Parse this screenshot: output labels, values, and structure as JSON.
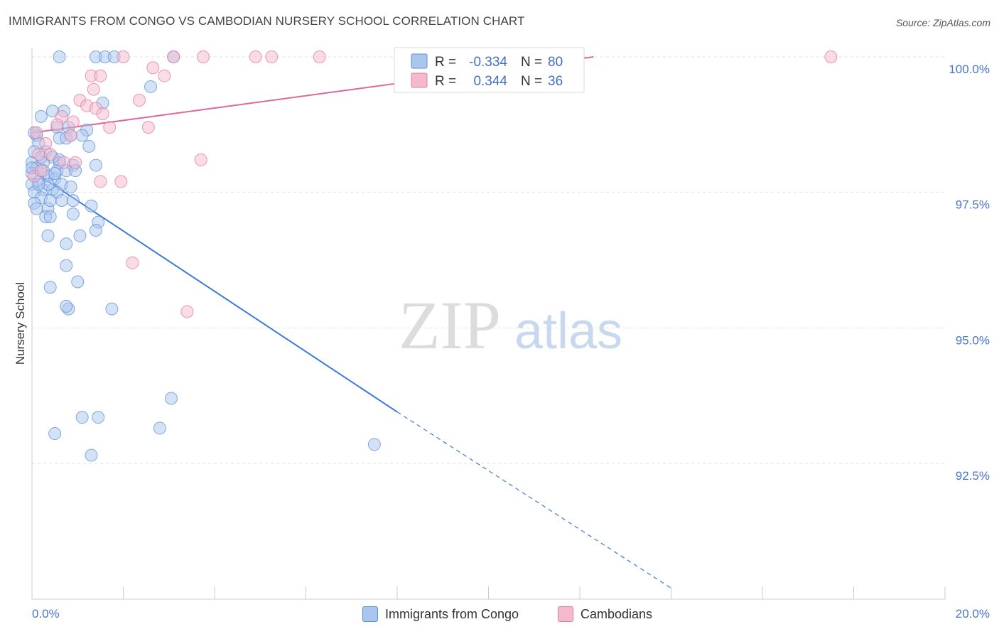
{
  "title": "IMMIGRANTS FROM CONGO VS CAMBODIAN NURSERY SCHOOL CORRELATION CHART",
  "source": "Source: ZipAtlas.com",
  "watermark": {
    "zip": "ZIP",
    "atlas": "atlas"
  },
  "chart_data": {
    "type": "scatter",
    "title": "IMMIGRANTS FROM CONGO VS CAMBODIAN NURSERY SCHOOL CORRELATION CHART",
    "xlabel": "",
    "ylabel": "Nursery School",
    "xlim": [
      0,
      20
    ],
    "ylim": [
      90.2,
      100.4
    ],
    "x_tick_labels": {
      "min": "0.0%",
      "max": "20.0%"
    },
    "y_ticks": [
      {
        "value": 100.0,
        "label": "100.0%"
      },
      {
        "value": 97.5,
        "label": "97.5%"
      },
      {
        "value": 95.0,
        "label": "95.0%"
      },
      {
        "value": 92.5,
        "label": "92.5%"
      }
    ],
    "legend": {
      "r_label": "R =",
      "n_label": "N =",
      "entries": [
        {
          "r": "-0.334",
          "n": "80"
        },
        {
          "r": "0.344",
          "n": "36"
        }
      ]
    },
    "series": [
      {
        "name": "Immigrants from Congo",
        "color": "#5b8fd8",
        "fill": "#aac6ee",
        "trend": {
          "x1": 0.0,
          "y1": 97.9,
          "x2": 8.0,
          "y2": 93.45,
          "dash_to_x": 14.0,
          "dash_to_y": 90.2
        },
        "points": [
          [
            0.6,
            100.0
          ],
          [
            1.4,
            100.0
          ],
          [
            1.6,
            100.0
          ],
          [
            1.8,
            100.0
          ],
          [
            3.1,
            100.0
          ],
          [
            2.6,
            99.45
          ],
          [
            1.55,
            99.15
          ],
          [
            0.2,
            98.9
          ],
          [
            0.45,
            99.0
          ],
          [
            0.7,
            99.0
          ],
          [
            0.55,
            98.7
          ],
          [
            0.8,
            98.7
          ],
          [
            1.2,
            98.65
          ],
          [
            0.1,
            98.55
          ],
          [
            0.6,
            98.5
          ],
          [
            0.75,
            98.5
          ],
          [
            1.1,
            98.55
          ],
          [
            1.25,
            98.35
          ],
          [
            0.15,
            98.4
          ],
          [
            0.3,
            98.25
          ],
          [
            0.45,
            98.15
          ],
          [
            0.0,
            98.05
          ],
          [
            0.25,
            98.05
          ],
          [
            0.6,
            98.05
          ],
          [
            0.9,
            98.0
          ],
          [
            1.4,
            98.0
          ],
          [
            0.1,
            97.95
          ],
          [
            0.25,
            97.9
          ],
          [
            0.55,
            97.9
          ],
          [
            0.75,
            97.9
          ],
          [
            0.95,
            97.9
          ],
          [
            0.0,
            97.85
          ],
          [
            0.35,
            97.8
          ],
          [
            0.5,
            97.75
          ],
          [
            0.15,
            97.7
          ],
          [
            0.65,
            97.65
          ],
          [
            0.85,
            97.6
          ],
          [
            0.0,
            97.65
          ],
          [
            0.25,
            97.55
          ],
          [
            0.45,
            97.55
          ],
          [
            0.05,
            97.5
          ],
          [
            0.55,
            97.5
          ],
          [
            0.2,
            97.4
          ],
          [
            0.65,
            97.35
          ],
          [
            0.9,
            97.35
          ],
          [
            1.3,
            97.25
          ],
          [
            0.05,
            97.3
          ],
          [
            0.35,
            97.2
          ],
          [
            0.9,
            97.1
          ],
          [
            0.3,
            97.05
          ],
          [
            0.4,
            97.05
          ],
          [
            1.45,
            96.95
          ],
          [
            1.4,
            96.8
          ],
          [
            0.35,
            96.7
          ],
          [
            1.05,
            96.7
          ],
          [
            0.75,
            96.55
          ],
          [
            0.75,
            96.15
          ],
          [
            1.0,
            95.85
          ],
          [
            0.4,
            95.75
          ],
          [
            0.8,
            95.35
          ],
          [
            0.75,
            95.4
          ],
          [
            1.75,
            95.35
          ],
          [
            3.05,
            93.7
          ],
          [
            1.1,
            93.35
          ],
          [
            1.45,
            93.35
          ],
          [
            0.5,
            93.05
          ],
          [
            2.8,
            93.15
          ],
          [
            1.3,
            92.65
          ],
          [
            7.5,
            92.85
          ],
          [
            0.05,
            98.6
          ],
          [
            0.35,
            97.65
          ],
          [
            0.15,
            97.65
          ],
          [
            0.6,
            98.1
          ],
          [
            0.05,
            98.25
          ],
          [
            0.2,
            98.15
          ],
          [
            0.0,
            97.95
          ],
          [
            0.4,
            97.35
          ],
          [
            0.1,
            97.2
          ],
          [
            0.85,
            98.55
          ],
          [
            0.5,
            97.85
          ]
        ]
      },
      {
        "name": "Cambodians",
        "color": "#e07aa0",
        "fill": "#f4b9cd",
        "trend": {
          "x1": 0.0,
          "y1": 98.6,
          "x2": 12.3,
          "y2": 100.0
        },
        "points": [
          [
            2.0,
            100.0
          ],
          [
            3.1,
            100.0
          ],
          [
            3.75,
            100.0
          ],
          [
            4.9,
            100.0
          ],
          [
            5.25,
            100.0
          ],
          [
            6.3,
            100.0
          ],
          [
            17.5,
            100.0
          ],
          [
            2.65,
            99.8
          ],
          [
            1.3,
            99.65
          ],
          [
            1.5,
            99.65
          ],
          [
            2.9,
            99.65
          ],
          [
            1.35,
            99.4
          ],
          [
            1.05,
            99.2
          ],
          [
            2.35,
            99.2
          ],
          [
            1.2,
            99.1
          ],
          [
            1.4,
            99.05
          ],
          [
            1.55,
            98.95
          ],
          [
            0.65,
            98.9
          ],
          [
            0.55,
            98.75
          ],
          [
            2.55,
            98.7
          ],
          [
            1.7,
            98.7
          ],
          [
            0.85,
            98.55
          ],
          [
            0.3,
            98.4
          ],
          [
            0.15,
            98.2
          ],
          [
            0.4,
            98.2
          ],
          [
            3.7,
            98.1
          ],
          [
            0.95,
            98.05
          ],
          [
            1.5,
            97.7
          ],
          [
            1.95,
            97.7
          ],
          [
            0.05,
            97.8
          ],
          [
            2.2,
            96.2
          ],
          [
            3.4,
            95.3
          ],
          [
            0.1,
            98.6
          ],
          [
            0.2,
            97.9
          ],
          [
            0.7,
            98.05
          ],
          [
            0.9,
            98.8
          ]
        ]
      }
    ]
  }
}
